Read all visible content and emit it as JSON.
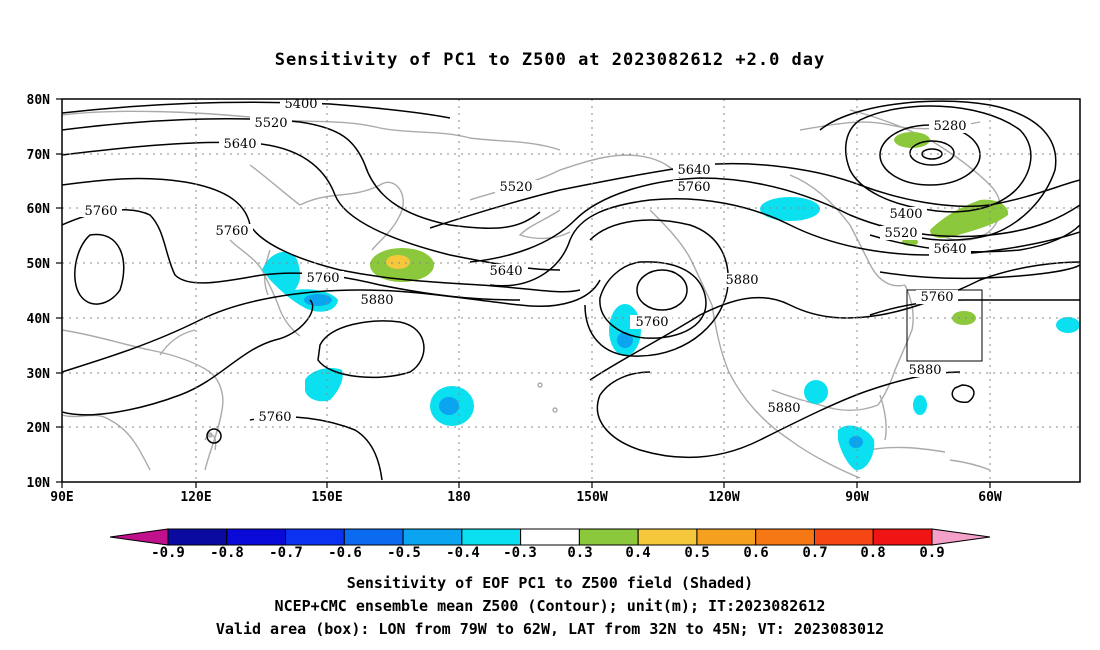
{
  "title": "Sensitivity of PC1 to Z500 at 2023082612 +2.0 day",
  "lat_labels": [
    "80N",
    "70N",
    "60N",
    "50N",
    "40N",
    "30N",
    "20N",
    "10N"
  ],
  "lon_labels": [
    "90E",
    "120E",
    "150E",
    "180",
    "150W",
    "120W",
    "90W",
    "60W"
  ],
  "contour_labels": [
    "5400",
    "5520",
    "5640",
    "5760",
    "5760",
    "5760",
    "5520",
    "5640",
    "5760",
    "5880",
    "5640",
    "5760",
    "5880",
    "5760",
    "5880",
    "5880",
    "5880",
    "5280",
    "5400",
    "5520",
    "5640",
    "5760",
    "5880"
  ],
  "colorbar": {
    "labels": [
      "-0.9",
      "-0.8",
      "-0.7",
      "-0.6",
      "-0.5",
      "-0.4",
      "-0.3",
      "0.3",
      "0.4",
      "0.5",
      "0.6",
      "0.7",
      "0.8",
      "0.9"
    ],
    "colors": [
      "#0a0aa0",
      "#0a0ad8",
      "#0a32f0",
      "#0a6af0",
      "#0aa4f0",
      "#0ae0f0",
      "#ffffff",
      "#8cc83c",
      "#f5c83c",
      "#f5a01e",
      "#f57814",
      "#f54614",
      "#f01414"
    ],
    "low_arrow_color": "#c0108c",
    "high_arrow_color": "#f5a0c8"
  },
  "footer": {
    "line1": "Sensitivity of EOF PC1 to Z500 field (Shaded)",
    "line2": "NCEP+CMC ensemble mean Z500 (Contour); unit(m); IT:2023082612",
    "line3": "Valid area (box): LON from 79W to 62W, LAT from 32N to 45N; VT: 2023083012"
  },
  "valid_box": {
    "lon_from": "79W",
    "lon_to": "62W",
    "lat_from": "32N",
    "lat_to": "45N"
  }
}
